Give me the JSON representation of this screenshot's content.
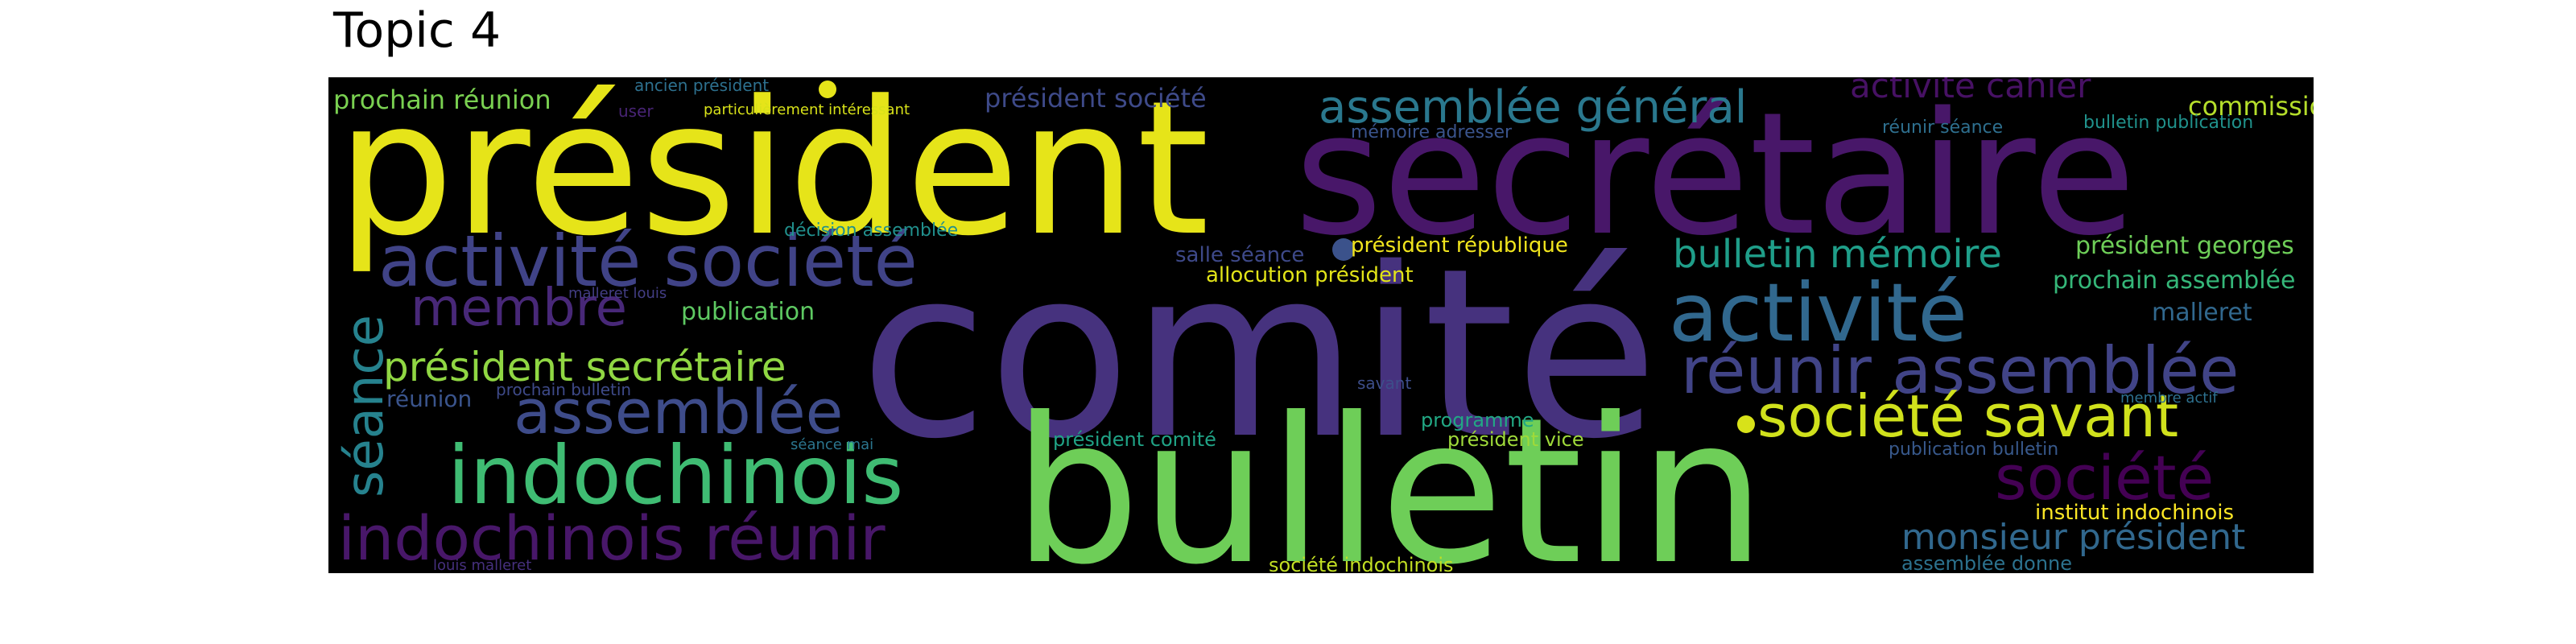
{
  "title": "Topic 4",
  "colors": {
    "background": "#000000",
    "title": "#000000"
  },
  "wordcloud": {
    "words": [
      {
        "text": "président"
      },
      {
        "text": "secrétaire"
      },
      {
        "text": "comité"
      },
      {
        "text": "bulletin"
      },
      {
        "text": "activité société"
      },
      {
        "text": "activité"
      },
      {
        "text": "assemblée général"
      },
      {
        "text": "réunir assemblée"
      },
      {
        "text": "société savant"
      },
      {
        "text": "indochinois"
      },
      {
        "text": "indochinois réunir"
      },
      {
        "text": "assemblée"
      },
      {
        "text": "membre"
      },
      {
        "text": "séance"
      },
      {
        "text": "président secrétaire"
      },
      {
        "text": "bulletin mémoire"
      },
      {
        "text": "société"
      },
      {
        "text": "monsieur président"
      },
      {
        "text": "activité cahier"
      },
      {
        "text": "prochain réunion"
      },
      {
        "text": "président société"
      },
      {
        "text": "commission"
      },
      {
        "text": "publication"
      },
      {
        "text": "président georges"
      },
      {
        "text": "prochain assemblée"
      },
      {
        "text": "malleret"
      },
      {
        "text": "réunion"
      },
      {
        "text": "salle séance"
      },
      {
        "text": "président république"
      },
      {
        "text": "allocution président"
      },
      {
        "text": "institut indochinois"
      },
      {
        "text": "décision assemblée"
      },
      {
        "text": "président comité"
      },
      {
        "text": "président vice"
      },
      {
        "text": "programme"
      },
      {
        "text": "société indochinois"
      },
      {
        "text": "assemblée donne"
      },
      {
        "text": "publication bulletin"
      },
      {
        "text": "bulletin publication"
      },
      {
        "text": "réunir séance"
      },
      {
        "text": "ancien président"
      },
      {
        "text": "particulièrement intéressant"
      },
      {
        "text": "user"
      },
      {
        "text": "mémoire adresser"
      },
      {
        "text": "malleret louis"
      },
      {
        "text": "prochain bulletin"
      },
      {
        "text": "savant"
      },
      {
        "text": "séance mai"
      },
      {
        "text": "membre actif"
      },
      {
        "text": "louis malleret"
      }
    ]
  }
}
